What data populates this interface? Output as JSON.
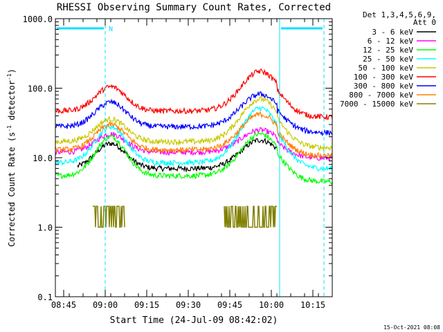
{
  "chart_data": {
    "type": "line",
    "title": "RHESSI Observing Summary Count Rates, Corrected",
    "xlabel": "Start Time (24-Jul-09 08:42:02)",
    "ylabel_main": "Corrected Count Rate (s",
    "ylabel_sup1": "-1",
    "ylabel_mid": " detector",
    "ylabel_sup2": "-1",
    "ylabel_end": ")",
    "yscale": "log",
    "ylim": [
      0.1,
      1000
    ],
    "xlim_minutes": [
      0,
      100
    ],
    "xticks": [
      {
        "label": "08:45",
        "t": 3
      },
      {
        "label": "09:00",
        "t": 18
      },
      {
        "label": "09:15",
        "t": 33
      },
      {
        "label": "09:30",
        "t": 48
      },
      {
        "label": "09:45",
        "t": 63
      },
      {
        "label": "10:00",
        "t": 78
      },
      {
        "label": "10:15",
        "t": 93
      }
    ],
    "yticks": [
      {
        "label": "1000.0",
        "v": 1000
      },
      {
        "label": "100.0",
        "v": 100
      },
      {
        "label": "10.0",
        "v": 10
      },
      {
        "label": "1.0",
        "v": 1
      },
      {
        "label": "0.1",
        "v": 0.1
      }
    ],
    "legend_header_1": "Det 1,3,4,5,6,9,",
    "legend_header_2": "Att 0",
    "date_stamp": "15-Oct-2021 08:08",
    "night_marker_label": "N",
    "night_intervals_minutes": [
      [
        0,
        18
      ],
      [
        81,
        97
      ]
    ],
    "series": [
      {
        "name": "3 - 6 keV",
        "color": "#000000",
        "base": 7.0,
        "p1": 16,
        "p2": 18,
        "t": [
          8,
          13,
          17,
          20,
          24,
          30,
          40,
          50,
          58,
          63,
          70,
          75,
          78.5,
          81.5,
          85,
          97
        ],
        "v": [
          null,
          9,
          14,
          16,
          13,
          9,
          7,
          7,
          9,
          12,
          17,
          18,
          15,
          null,
          null,
          null
        ]
      },
      {
        "name": "6 - 12 keV",
        "color": "#ff00ff",
        "base": 12,
        "p1": 22,
        "p2": 25
      },
      {
        "name": "12 - 25 keV",
        "color": "#00ff00",
        "base": 5.5,
        "p1": 20,
        "p2": 22
      },
      {
        "name": "25 - 50 keV",
        "color": "#00ffff",
        "base": 8.5,
        "p1": 28,
        "p2": 52
      },
      {
        "name": "50 - 100 keV",
        "color": "#c8c800",
        "base": 17,
        "p1": 36,
        "p2": 70
      },
      {
        "name": "100 - 300 keV",
        "color": "#ff0000",
        "base": 47,
        "p1": 105,
        "p2": 175
      },
      {
        "name": "300 - 800 keV",
        "color": "#0000ff",
        "base": 28,
        "p1": 63,
        "p2": 82
      },
      {
        "name": "800 - 7000 keV",
        "color": "#ff8000",
        "base": 13,
        "p1": 30,
        "p2": 42
      },
      {
        "name": "7000 - 15000 keV",
        "color": "#808000",
        "base": 1.0,
        "p1": 2.0,
        "p2": 2.0
      }
    ]
  }
}
